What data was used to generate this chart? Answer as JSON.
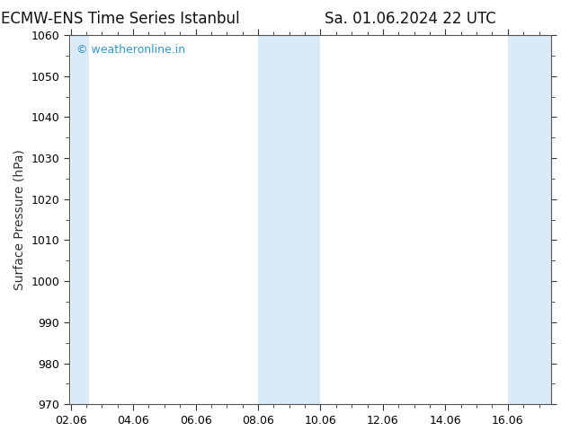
{
  "title_left": "ECMW-ENS Time Series Istanbul",
  "title_right": "Sa. 01.06.2024 22 UTC",
  "ylabel": "Surface Pressure (hPa)",
  "ylim": [
    970,
    1060
  ],
  "yticks": [
    970,
    980,
    990,
    1000,
    1010,
    1020,
    1030,
    1040,
    1050,
    1060
  ],
  "xtick_labels": [
    "02.06",
    "04.06",
    "06.06",
    "08.06",
    "10.06",
    "12.06",
    "14.06",
    "16.06"
  ],
  "xtick_positions": [
    0,
    2,
    4,
    6,
    8,
    10,
    12,
    14
  ],
  "xlim": [
    -0.05,
    15.4
  ],
  "shaded_bands": [
    {
      "xstart": 0.0,
      "xend": 0.6
    },
    {
      "xstart": 6.0,
      "xend": 8.0
    },
    {
      "xstart": 14.0,
      "xend": 15.4
    }
  ],
  "band_color": "#daeaf7",
  "background_color": "#ffffff",
  "plot_bg_color": "#ffffff",
  "watermark_text": "© weatheronline.in",
  "watermark_color": "#3399cc",
  "title_fontsize": 12,
  "axis_label_fontsize": 10,
  "tick_fontsize": 9,
  "watermark_fontsize": 9,
  "spine_color": "#555555",
  "tick_color": "#333333"
}
